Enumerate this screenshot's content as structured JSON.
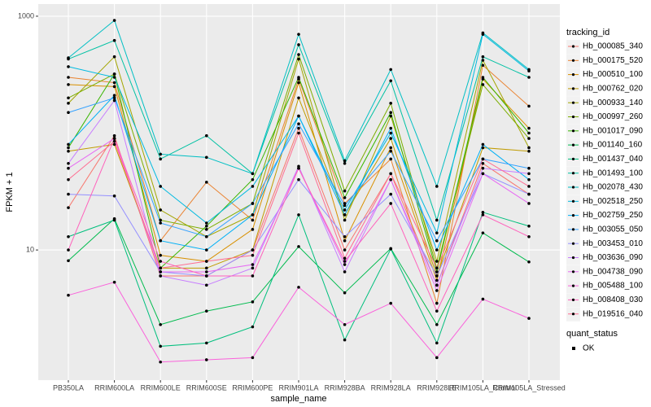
{
  "chart_data": {
    "type": "line",
    "x_label": "sample_name",
    "y_label": "FPKM + 1",
    "legend_title": "tracking_id",
    "status_legend": {
      "title": "quant_status",
      "label": "OK"
    },
    "log_y": true,
    "grid": true,
    "legend_position": "right",
    "ylim": [
      0.77,
      1270
    ],
    "yticks": [
      10,
      1000
    ],
    "categories": [
      "PB350LA",
      "RRIM600LA",
      "RRIM600LE",
      "RRIM600SE",
      "RRIM600PE",
      "RRIM901LA",
      "RRIM928BA",
      "RRIM928LA",
      "RRIM928LE",
      "RRIM105LA_Control",
      "RRIM105LA_Stressed"
    ],
    "series": [
      {
        "name": "Hb_000085_340",
        "color": "#F8766D",
        "values": [
          23,
          95,
          6.0,
          6.0,
          10,
          110,
          10,
          45,
          5.0,
          55,
          30
        ]
      },
      {
        "name": "Hb_000175_520",
        "color": "#EA8331",
        "values": [
          300,
          270,
          12,
          38,
          18,
          290,
          25,
          60,
          3.5,
          380,
          170
        ]
      },
      {
        "name": "Hb_000510_100",
        "color": "#D89000",
        "values": [
          260,
          250,
          9,
          8,
          15,
          270,
          12,
          75,
          5.5,
          290,
          110
        ]
      },
      {
        "name": "Hb_000762_020",
        "color": "#C09B00",
        "values": [
          70,
          80,
          7,
          7,
          10,
          200,
          20,
          90,
          6,
          75,
          70
        ]
      },
      {
        "name": "Hb_000933_140",
        "color": "#A3A500",
        "values": [
          180,
          450,
          22,
          13,
          20,
          430,
          18,
          140,
          8,
          420,
          75
        ]
      },
      {
        "name": "Hb_000997_260",
        "color": "#7CAE00",
        "values": [
          200,
          320,
          18,
          15,
          25,
          470,
          32,
          180,
          7,
          260,
          90
        ]
      },
      {
        "name": "Hb_001017_090",
        "color": "#39B600",
        "values": [
          75,
          320,
          7,
          16,
          40,
          300,
          28,
          150,
          6.5,
          300,
          100
        ]
      },
      {
        "name": "Hb_001140_160",
        "color": "#00BB4E",
        "values": [
          8.1,
          18.5,
          2.3,
          3.0,
          3.6,
          10.7,
          4.3,
          10.3,
          2.3,
          14,
          7.9
        ]
      },
      {
        "name": "Hb_001437_040",
        "color": "#00BF7D",
        "values": [
          13,
          18,
          1.5,
          1.6,
          2.2,
          20,
          1.7,
          10.2,
          1.6,
          21,
          16
        ]
      },
      {
        "name": "Hb_001493_100",
        "color": "#00C1A3",
        "values": [
          430,
          620,
          60,
          95,
          45,
          570,
          55,
          280,
          18,
          450,
          300
        ]
      },
      {
        "name": "Hb_002078_430",
        "color": "#00BFC4",
        "values": [
          440,
          920,
          66,
          62,
          45,
          700,
          58,
          350,
          35,
          720,
          350
        ]
      },
      {
        "name": "Hb_002518_250",
        "color": "#00BAE0",
        "values": [
          370,
          300,
          35,
          17,
          35,
          140,
          22,
          100,
          14,
          700,
          340
        ]
      },
      {
        "name": "Hb_002759_250",
        "color": "#00B0F6",
        "values": [
          80,
          210,
          12,
          10,
          20,
          140,
          20,
          110,
          10,
          80,
          40
        ]
      },
      {
        "name": "Hb_003055_050",
        "color": "#35A2FF",
        "values": [
          150,
          200,
          17,
          13,
          25,
          120,
          24,
          70,
          12,
          60,
          50
        ]
      },
      {
        "name": "Hb_003453_010",
        "color": "#9590FF",
        "values": [
          30,
          29,
          6.5,
          6,
          10,
          40,
          13,
          30,
          6,
          45,
          30
        ]
      },
      {
        "name": "Hb_003636_090",
        "color": "#C77CFF",
        "values": [
          55,
          190,
          6.0,
          5.0,
          7,
          52,
          6.5,
          40,
          5,
          50,
          45
        ]
      },
      {
        "name": "Hb_004738_090",
        "color": "#E76BF3",
        "values": [
          50,
          90,
          6.5,
          6.5,
          7.5,
          50,
          7.5,
          40,
          4.5,
          45,
          25
        ]
      },
      {
        "name": "Hb_005488_100",
        "color": "#FA62DB",
        "values": [
          4.1,
          5.3,
          1.1,
          1.15,
          1.2,
          4.8,
          2.3,
          3.5,
          1.2,
          3.8,
          2.6
        ]
      },
      {
        "name": "Hb_008408_030",
        "color": "#FF62BC",
        "values": [
          10,
          90,
          8,
          6,
          6,
          50,
          8,
          25,
          3.0,
          20,
          13
        ]
      },
      {
        "name": "Hb_019516_040",
        "color": "#FF6C91",
        "values": [
          40,
          85,
          7,
          8,
          9,
          100,
          8.5,
          45,
          7,
          60,
          35
        ]
      }
    ]
  }
}
